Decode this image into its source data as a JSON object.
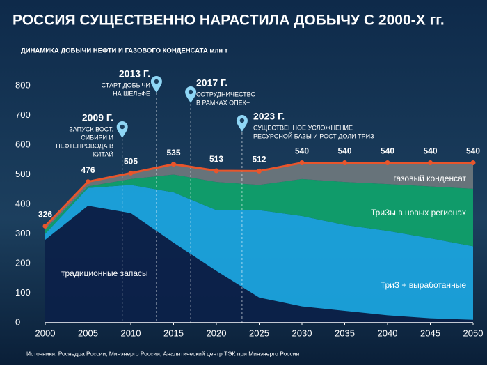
{
  "chart_data": {
    "type": "stacked_area",
    "title": "РОССИЯ СУЩЕСТВЕННО НАРАСТИЛА ДОБЫЧУ С 2000-Х гг.",
    "subtitle": "ДИНАМИКА ДОБЫЧИ НЕФТИ И ГАЗОВОГО КОНДЕНСАТА млн т",
    "source": "Источники: Роснедра России, Минэнерго России, Аналитический центр ТЭК при Минэнерго России",
    "x": [
      2000,
      2005,
      2010,
      2015,
      2020,
      2025,
      2030,
      2035,
      2040,
      2045,
      2050
    ],
    "xlim": [
      2000,
      2050
    ],
    "xticks": [
      2000,
      2005,
      2010,
      2015,
      2020,
      2025,
      2030,
      2035,
      2040,
      2045,
      2050
    ],
    "ylim": [
      0,
      800
    ],
    "yticks": [
      0,
      100,
      200,
      300,
      400,
      500,
      600,
      700,
      800
    ],
    "grid": false,
    "series": [
      {
        "name": "традиционные запасы",
        "color": "#0c2149",
        "values": [
          280,
          395,
          370,
          270,
          175,
          85,
          55,
          40,
          25,
          15,
          10
        ]
      },
      {
        "name": "ТриЗ + выработанные",
        "color": "#1ba3dd",
        "values": [
          20,
          60,
          95,
          170,
          205,
          295,
          305,
          290,
          285,
          270,
          248
        ]
      },
      {
        "name": "ТриЗы в новых регионах",
        "color": "#10a06a",
        "values": [
          15,
          5,
          20,
          60,
          95,
          85,
          125,
          145,
          158,
          175,
          194
        ]
      },
      {
        "name": "газовый конденсат",
        "color": "#6b767c",
        "values": [
          11,
          16,
          20,
          35,
          38,
          47,
          55,
          65,
          72,
          80,
          88
        ]
      }
    ],
    "line": {
      "color": "#e8552b",
      "values": [
        326,
        476,
        505,
        535,
        513,
        512,
        540,
        540,
        540,
        540,
        540
      ]
    },
    "annotations": [
      {
        "x": 2009,
        "title": "2009 Г.",
        "lines": [
          "ЗАПУСК ВОСТ.",
          "СИБИРИ И",
          "НЕФТЕПРОВОДА В",
          "КИТАЙ"
        ]
      },
      {
        "x": 2013,
        "title": "2013 Г.",
        "lines": [
          "СТАРТ ДОБЫЧИ",
          "НА ШЕЛЬФЕ"
        ]
      },
      {
        "x": 2017,
        "title": "2017 Г.",
        "lines": [
          "СОТРУДНИЧЕСТВО",
          "В РАМКАХ ОПЕК+"
        ]
      },
      {
        "x": 2023,
        "title": "2023 Г.",
        "lines": [
          "СУЩЕСТВЕННОЕ УСЛОЖНЕНИЕ",
          "РЕСУРСНОЙ БАЗЫ И РОСТ ДОЛИ ТРИЗ"
        ]
      }
    ]
  }
}
